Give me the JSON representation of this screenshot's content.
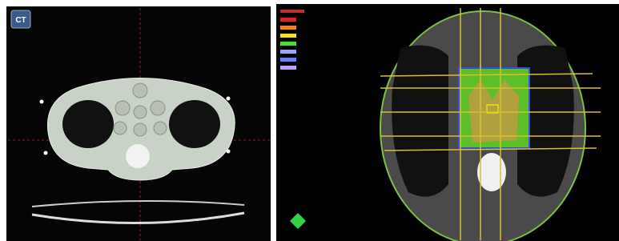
{
  "badge": "CT"
}
